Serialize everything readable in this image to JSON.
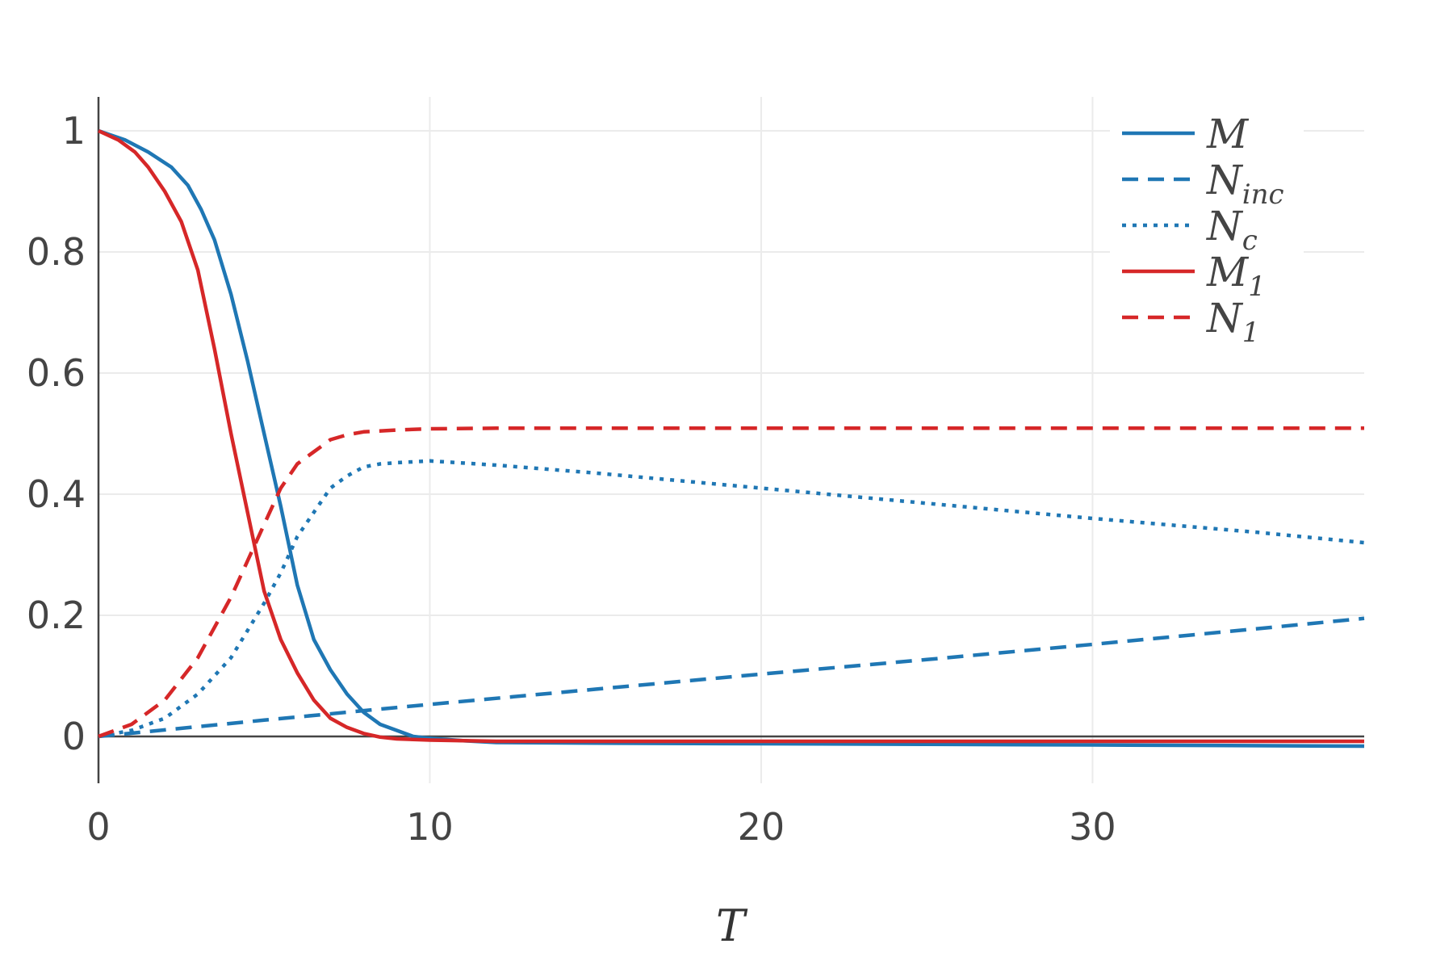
{
  "chart_data": {
    "type": "line",
    "xlabel": "T",
    "ylabel": "",
    "xlim": [
      0,
      38.2
    ],
    "ylim": [
      -0.07,
      1.06
    ],
    "grid": true,
    "legend_position": "top-right",
    "x_ticks": [
      0,
      10,
      20,
      30
    ],
    "x_tick_labels": [
      "0",
      "10",
      "20",
      "30"
    ],
    "y_ticks": [
      0,
      0.2,
      0.4,
      0.6,
      0.8,
      1
    ],
    "y_tick_labels": [
      "0",
      "0.2",
      "0.4",
      "0.6",
      "0.8",
      "1"
    ],
    "series": [
      {
        "name": "M",
        "name_main": "M",
        "name_sub": "",
        "color": "#1f77b4",
        "dash": "solid",
        "x": [
          0,
          0.8,
          1.5,
          2.2,
          2.7,
          3.1,
          3.5,
          4,
          4.5,
          5,
          5.5,
          6,
          6.5,
          7,
          7.5,
          8,
          8.5,
          9,
          9.5,
          10,
          11,
          12,
          15,
          20,
          25,
          30,
          38.2
        ],
        "y": [
          1.0,
          0.985,
          0.965,
          0.94,
          0.91,
          0.87,
          0.82,
          0.73,
          0.62,
          0.5,
          0.38,
          0.25,
          0.16,
          0.11,
          0.07,
          0.04,
          0.02,
          0.01,
          0.0,
          -0.003,
          -0.007,
          -0.01,
          -0.011,
          -0.012,
          -0.013,
          -0.014,
          -0.016
        ]
      },
      {
        "name": "N_inc",
        "name_main": "N",
        "name_sub": "inc",
        "color": "#1f77b4",
        "dash": "dashed",
        "x": [
          0,
          5,
          10,
          15,
          20,
          25,
          30,
          35,
          38.2
        ],
        "y": [
          0.0,
          0.027,
          0.053,
          0.078,
          0.103,
          0.127,
          0.152,
          0.178,
          0.195
        ]
      },
      {
        "name": "N_c",
        "name_main": "N",
        "name_sub": "c",
        "color": "#1f77b4",
        "dash": "dotted",
        "x": [
          0,
          1,
          2,
          3,
          4,
          5,
          5.5,
          6,
          6.5,
          7,
          7.5,
          8,
          8.5,
          9,
          10,
          12,
          15,
          20,
          25,
          30,
          35,
          38.2
        ],
        "y": [
          0.0,
          0.01,
          0.03,
          0.07,
          0.13,
          0.22,
          0.27,
          0.33,
          0.37,
          0.41,
          0.43,
          0.445,
          0.45,
          0.452,
          0.455,
          0.448,
          0.435,
          0.41,
          0.385,
          0.36,
          0.337,
          0.32
        ]
      },
      {
        "name": "M_1",
        "name_main": "M",
        "name_sub": "1",
        "color": "#d62728",
        "dash": "solid",
        "x": [
          0,
          0.6,
          1.1,
          1.5,
          2,
          2.5,
          3,
          3.5,
          4,
          4.5,
          5,
          5.5,
          6,
          6.5,
          7,
          7.5,
          8,
          8.5,
          9,
          10,
          11,
          12,
          15,
          20,
          30,
          38.2
        ],
        "y": [
          1.0,
          0.985,
          0.965,
          0.94,
          0.9,
          0.85,
          0.77,
          0.64,
          0.5,
          0.37,
          0.24,
          0.16,
          0.105,
          0.06,
          0.03,
          0.015,
          0.005,
          -0.001,
          -0.004,
          -0.006,
          -0.007,
          -0.008,
          -0.008,
          -0.008,
          -0.008,
          -0.008
        ]
      },
      {
        "name": "N_1",
        "name_main": "N",
        "name_sub": "1",
        "color": "#d62728",
        "dash": "dashed",
        "x": [
          0,
          1,
          2,
          3,
          4,
          4.5,
          5,
          5.5,
          6,
          6.5,
          7,
          7.5,
          8,
          9,
          10,
          12,
          15,
          20,
          30,
          38.2
        ],
        "y": [
          0.0,
          0.02,
          0.06,
          0.13,
          0.23,
          0.29,
          0.35,
          0.41,
          0.45,
          0.47,
          0.49,
          0.498,
          0.503,
          0.506,
          0.508,
          0.509,
          0.509,
          0.509,
          0.509,
          0.509
        ]
      }
    ]
  }
}
